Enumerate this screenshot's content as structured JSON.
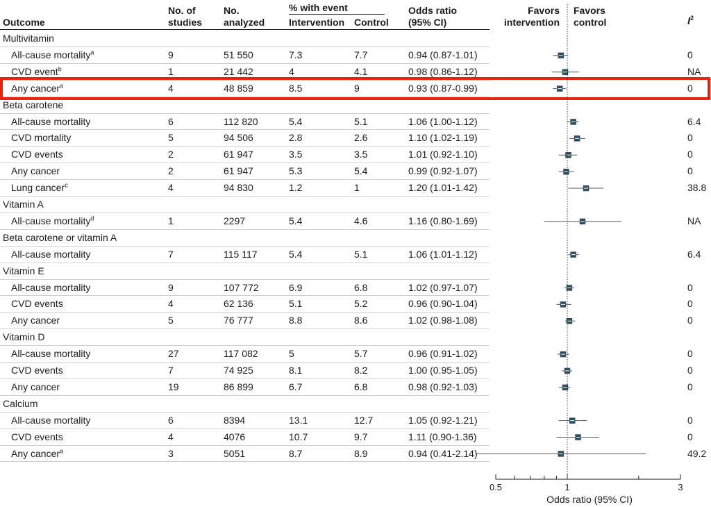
{
  "chart_data": {
    "type": "table",
    "columns": {
      "outcome": "Outcome",
      "studies": [
        "No. of",
        "studies"
      ],
      "analyzed": [
        "No.",
        "analyzed"
      ],
      "pct_event": "% with event",
      "intervention": "Intervention",
      "control": "Control",
      "or": [
        "Odds ratio",
        "(95% CI)"
      ],
      "favors_intervention": [
        "Favors",
        "intervention"
      ],
      "favors_control": [
        "Favors",
        "control"
      ],
      "i2_base": "I",
      "i2_sup": "2"
    },
    "xaxis": {
      "label": "Odds ratio (95% CI)",
      "scale": "log",
      "range": [
        0.5,
        3
      ],
      "ticks": [
        "0.5",
        "1",
        "3"
      ],
      "reference": 1
    },
    "rows": [
      {
        "kind": "group",
        "outcome": "Multivitamin"
      },
      {
        "kind": "item",
        "outcome": "All-cause mortality",
        "note": "a",
        "studies": "9",
        "analyzed": "51 550",
        "intervention": "7.3",
        "control": "7.7",
        "or_text": "0.94 (0.87-1.01)",
        "or": 0.94,
        "lo": 0.87,
        "hi": 1.01,
        "i2": "0"
      },
      {
        "kind": "item",
        "outcome": "CVD event",
        "note": "b",
        "studies": "1",
        "analyzed": "21 442",
        "intervention": "4",
        "control": "4.1",
        "or_text": "0.98 (0.86-1.12)",
        "or": 0.98,
        "lo": 0.86,
        "hi": 1.12,
        "i2": "NA"
      },
      {
        "kind": "item",
        "outcome": "Any cancer",
        "note": "a",
        "studies": "4",
        "analyzed": "48 859",
        "intervention": "8.5",
        "control": "9",
        "or_text": "0.93 (0.87-0.99)",
        "or": 0.93,
        "lo": 0.87,
        "hi": 0.99,
        "i2": "0",
        "highlight": true
      },
      {
        "kind": "group",
        "outcome": "Beta carotene"
      },
      {
        "kind": "item",
        "outcome": "All-cause mortality",
        "note": "",
        "studies": "6",
        "analyzed": "112 820",
        "intervention": "5.4",
        "control": "5.1",
        "or_text": "1.06 (1.00-1.12)",
        "or": 1.06,
        "lo": 1.0,
        "hi": 1.12,
        "i2": "6.4"
      },
      {
        "kind": "item",
        "outcome": "CVD mortality",
        "note": "",
        "studies": "5",
        "analyzed": "94 506",
        "intervention": "2.8",
        "control": "2.6",
        "or_text": "1.10 (1.02-1.19)",
        "or": 1.1,
        "lo": 1.02,
        "hi": 1.19,
        "i2": "0"
      },
      {
        "kind": "item",
        "outcome": "CVD events",
        "note": "",
        "studies": "2",
        "analyzed": "61 947",
        "intervention": "3.5",
        "control": "3.5",
        "or_text": "1.01 (0.92-1.10)",
        "or": 1.01,
        "lo": 0.92,
        "hi": 1.1,
        "i2": "0"
      },
      {
        "kind": "item",
        "outcome": "Any cancer",
        "note": "",
        "studies": "2",
        "analyzed": "61 947",
        "intervention": "5.3",
        "control": "5.4",
        "or_text": "0.99 (0.92-1.07)",
        "or": 0.99,
        "lo": 0.92,
        "hi": 1.07,
        "i2": "0"
      },
      {
        "kind": "item",
        "outcome": "Lung cancer",
        "note": "c",
        "studies": "4",
        "analyzed": "94 830",
        "intervention": "1.2",
        "control": "1",
        "or_text": "1.20 (1.01-1.42)",
        "or": 1.2,
        "lo": 1.01,
        "hi": 1.42,
        "i2": "38.8"
      },
      {
        "kind": "group",
        "outcome": "Vitamin A"
      },
      {
        "kind": "item",
        "outcome": "All-cause mortality",
        "note": "d",
        "studies": "1",
        "analyzed": "2297",
        "intervention": "5.4",
        "control": "4.6",
        "or_text": "1.16 (0.80-1.69)",
        "or": 1.16,
        "lo": 0.8,
        "hi": 1.69,
        "i2": "NA"
      },
      {
        "kind": "group",
        "outcome": "Beta carotene or vitamin A"
      },
      {
        "kind": "item",
        "outcome": "All-cause mortality",
        "note": "",
        "studies": "7",
        "analyzed": "115 117",
        "intervention": "5.4",
        "control": "5.1",
        "or_text": "1.06 (1.01-1.12)",
        "or": 1.06,
        "lo": 1.01,
        "hi": 1.12,
        "i2": "6.4"
      },
      {
        "kind": "group",
        "outcome": "Vitamin E"
      },
      {
        "kind": "item",
        "outcome": "All-cause mortality",
        "note": "",
        "studies": "9",
        "analyzed": "107 772",
        "intervention": "6.9",
        "control": "6.8",
        "or_text": "1.02 (0.97-1.07)",
        "or": 1.02,
        "lo": 0.97,
        "hi": 1.07,
        "i2": "0"
      },
      {
        "kind": "item",
        "outcome": "CVD events",
        "note": "",
        "studies": "4",
        "analyzed": "62 136",
        "intervention": "5.1",
        "control": "5.2",
        "or_text": "0.96 (0.90-1.04)",
        "or": 0.96,
        "lo": 0.9,
        "hi": 1.04,
        "i2": "0"
      },
      {
        "kind": "item",
        "outcome": "Any cancer",
        "note": "",
        "studies": "5",
        "analyzed": "76 777",
        "intervention": "8.8",
        "control": "8.6",
        "or_text": "1.02 (0.98-1.08)",
        "or": 1.02,
        "lo": 0.98,
        "hi": 1.08,
        "i2": "0"
      },
      {
        "kind": "group",
        "outcome": "Vitamin D"
      },
      {
        "kind": "item",
        "outcome": "All-cause mortality",
        "note": "",
        "studies": "27",
        "analyzed": "117 082",
        "intervention": "5",
        "control": "5.7",
        "or_text": "0.96 (0.91-1.02)",
        "or": 0.96,
        "lo": 0.91,
        "hi": 1.02,
        "i2": "0"
      },
      {
        "kind": "item",
        "outcome": "CVD events",
        "note": "",
        "studies": "7",
        "analyzed": "74 925",
        "intervention": "8.1",
        "control": "8.2",
        "or_text": "1.00 (0.95-1.05)",
        "or": 1.0,
        "lo": 0.95,
        "hi": 1.05,
        "i2": "0"
      },
      {
        "kind": "item",
        "outcome": "Any cancer",
        "note": "",
        "studies": "19",
        "analyzed": "86 899",
        "intervention": "6.7",
        "control": "6.8",
        "or_text": "0.98 (0.92-1.03)",
        "or": 0.98,
        "lo": 0.92,
        "hi": 1.03,
        "i2": "0"
      },
      {
        "kind": "group",
        "outcome": "Calcium"
      },
      {
        "kind": "item",
        "outcome": "All-cause mortality",
        "note": "",
        "studies": "6",
        "analyzed": "8394",
        "intervention": "13.1",
        "control": "12.7",
        "or_text": "1.05 (0.92-1.21)",
        "or": 1.05,
        "lo": 0.92,
        "hi": 1.21,
        "i2": "0"
      },
      {
        "kind": "item",
        "outcome": "CVD events",
        "note": "",
        "studies": "4",
        "analyzed": "4076",
        "intervention": "10.7",
        "control": "9.7",
        "or_text": "1.11 (0.90-1.36)",
        "or": 1.11,
        "lo": 0.9,
        "hi": 1.36,
        "i2": "0"
      },
      {
        "kind": "item",
        "outcome": "Any cancer",
        "note": "a",
        "studies": "3",
        "analyzed": "5051",
        "intervention": "8.7",
        "control": "8.9",
        "or_text": "0.94 (0.41-2.14)",
        "or": 0.94,
        "lo": 0.41,
        "hi": 2.14,
        "i2": "49.2"
      }
    ],
    "colors": {
      "marker": "#2f4f5f",
      "highlight": "#e8240f",
      "rule": "#cfcfcf"
    }
  }
}
